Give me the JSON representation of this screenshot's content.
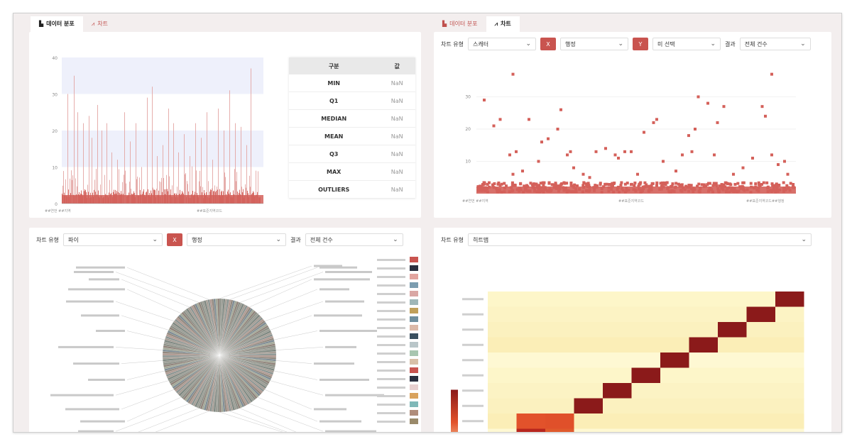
{
  "left_tabs": [
    {
      "label": "데이터 분포",
      "icon": "bar-chart-icon",
      "active": true
    },
    {
      "label": "차트",
      "icon": "line-chart-icon",
      "active": false
    }
  ],
  "right_tabs": [
    {
      "label": "데이터 분포",
      "icon": "bar-chart-icon",
      "active": false
    },
    {
      "label": "차트",
      "icon": "line-chart-icon",
      "active": true
    }
  ],
  "dist_panel": {
    "y_ticks": [
      "0",
      "10",
      "20",
      "30",
      "40"
    ],
    "x_labels": [
      "##연번 ##지역",
      "##표준지역코드"
    ],
    "stats_header": [
      "구분",
      "값"
    ],
    "stats_rows": [
      {
        "key": "MIN",
        "value": "NaN"
      },
      {
        "key": "Q1",
        "value": "NaN"
      },
      {
        "key": "MEDIAN",
        "value": "NaN"
      },
      {
        "key": "MEAN",
        "value": "NaN"
      },
      {
        "key": "Q3",
        "value": "NaN"
      },
      {
        "key": "MAX",
        "value": "NaN"
      },
      {
        "key": "OUTLIERS",
        "value": "NaN"
      }
    ]
  },
  "scatter_panel": {
    "chart_type_label": "차트 유형",
    "chart_type_value": "스캐터",
    "axis1_button": "X",
    "axis1_value": "행정",
    "axis2_button": "Y",
    "axis2_value": "미 선택",
    "result_label": "결과",
    "result_value": "전체 건수",
    "y_ticks": [
      "10",
      "20",
      "30"
    ],
    "x_labels": [
      "##연번 ##지역",
      "##표준지역코드",
      "##표준지역코드##행정"
    ]
  },
  "pie_panel": {
    "chart_type_label": "차트 유형",
    "chart_type_value": "파이",
    "axis_button": "X",
    "axis_value": "행정",
    "result_label": "결과",
    "result_value": "전체 건수"
  },
  "heat_panel": {
    "chart_type_label": "차트 유형",
    "chart_type_value": "히트맵"
  },
  "colors": {
    "accent": "#c9544f",
    "bar": "#d4605a",
    "heat_low": "#fdf6c9",
    "heat_high": "#8b1a1a"
  }
}
